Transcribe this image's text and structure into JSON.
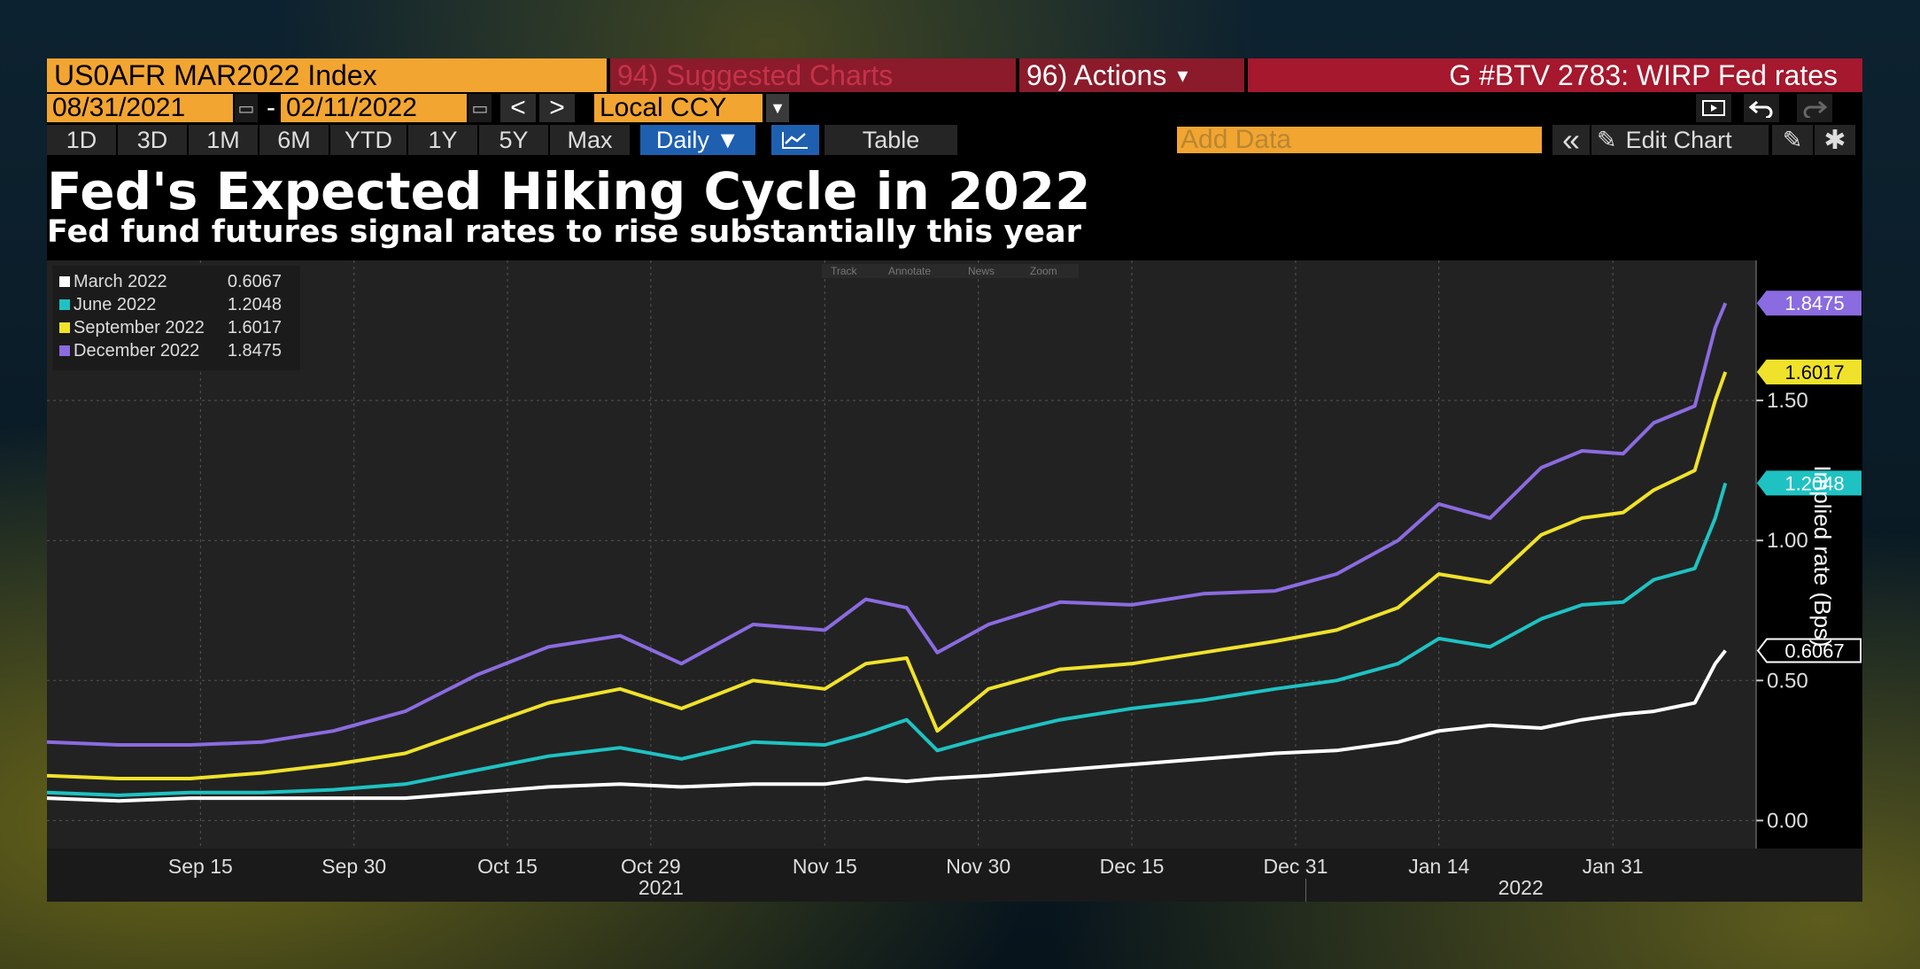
{
  "toolbar": {
    "ticker": "US0AFR MAR2022 Index",
    "suggested": "94) Suggested Charts",
    "actions": "96) Actions",
    "actions_caret": "▾",
    "gbtv": "G #BTV 2783: WIRP Fed rates",
    "start_date": "08/31/2021",
    "end_date": "02/11/2022",
    "date_dash": "-",
    "prev": "<",
    "next": ">",
    "currency": "Local CCY",
    "ranges": [
      "1D",
      "3D",
      "1M",
      "6M",
      "YTD",
      "1Y",
      "5Y",
      "Max"
    ],
    "daily": "Daily ▼",
    "table": "Table",
    "add_data_placeholder": "Add Data",
    "collapse": "«",
    "edit_chart": "Edit Chart"
  },
  "chart_toolbar": {
    "track": "Track",
    "annotate": "Annotate",
    "news": "News",
    "zoom": "Zoom"
  },
  "colors": {
    "march": "#ffffff",
    "june": "#1fc2c2",
    "september": "#f0e22a",
    "december": "#8b6be0",
    "accent": "#f2a531",
    "red": "#a5182d"
  },
  "chart_data": {
    "type": "line",
    "title": "Fed's Expected Hiking Cycle in 2022",
    "subtitle": "Fed fund futures signal rates to rise substantially this year",
    "ylabel": "Implied rate (Bps)",
    "ylim": [
      -0.1,
      2.0
    ],
    "yticks": [
      0.0,
      0.5,
      1.0,
      1.5
    ],
    "ytick_labels": [
      "0.00",
      "0.50",
      "1.00",
      "1.50"
    ],
    "xlim": [
      "2021-08-31",
      "2022-02-14"
    ],
    "xticks": [
      "2021-09-15",
      "2021-09-30",
      "2021-10-15",
      "2021-10-29",
      "2021-11-15",
      "2021-11-30",
      "2021-12-15",
      "2021-12-31",
      "2022-01-14",
      "2022-01-31"
    ],
    "xtick_labels": [
      "Sep 15",
      "Sep 30",
      "Oct 15",
      "Oct 29",
      "Nov 15",
      "Nov 30",
      "Dec 15",
      "Dec 31",
      "Jan 14",
      "Jan 31"
    ],
    "year_labels": [
      {
        "label": "2021",
        "date": "2021-10-30"
      },
      {
        "label": "2022",
        "date": "2022-01-22"
      }
    ],
    "year_divider": "2022-01-01",
    "grid": true,
    "legend_position": "top-left",
    "x": [
      "2021-08-31",
      "2021-09-07",
      "2021-09-14",
      "2021-09-21",
      "2021-09-28",
      "2021-10-05",
      "2021-10-12",
      "2021-10-19",
      "2021-10-26",
      "2021-11-01",
      "2021-11-08",
      "2021-11-15",
      "2021-11-19",
      "2021-11-23",
      "2021-11-26",
      "2021-12-01",
      "2021-12-08",
      "2021-12-15",
      "2021-12-22",
      "2021-12-29",
      "2022-01-04",
      "2022-01-10",
      "2022-01-14",
      "2022-01-19",
      "2022-01-24",
      "2022-01-28",
      "2022-02-01",
      "2022-02-04",
      "2022-02-08",
      "2022-02-10",
      "2022-02-11"
    ],
    "series": [
      {
        "name": "March 2022",
        "color": "#ffffff",
        "last": "0.6067",
        "values": [
          0.08,
          0.07,
          0.08,
          0.08,
          0.08,
          0.08,
          0.1,
          0.12,
          0.13,
          0.12,
          0.13,
          0.13,
          0.15,
          0.14,
          0.15,
          0.16,
          0.18,
          0.2,
          0.22,
          0.24,
          0.25,
          0.28,
          0.32,
          0.34,
          0.33,
          0.36,
          0.38,
          0.39,
          0.42,
          0.56,
          0.6067
        ]
      },
      {
        "name": "June 2022",
        "color": "#1fc2c2",
        "last": "1.2048",
        "values": [
          0.1,
          0.09,
          0.1,
          0.1,
          0.11,
          0.13,
          0.18,
          0.23,
          0.26,
          0.22,
          0.28,
          0.27,
          0.31,
          0.36,
          0.25,
          0.3,
          0.36,
          0.4,
          0.43,
          0.47,
          0.5,
          0.56,
          0.65,
          0.62,
          0.72,
          0.77,
          0.78,
          0.86,
          0.9,
          1.08,
          1.2048
        ]
      },
      {
        "name": "September 2022",
        "color": "#f0e22a",
        "last": "1.6017",
        "values": [
          0.16,
          0.15,
          0.15,
          0.17,
          0.2,
          0.24,
          0.33,
          0.42,
          0.47,
          0.4,
          0.5,
          0.47,
          0.56,
          0.58,
          0.32,
          0.47,
          0.54,
          0.56,
          0.6,
          0.64,
          0.68,
          0.76,
          0.88,
          0.85,
          1.02,
          1.08,
          1.1,
          1.18,
          1.25,
          1.5,
          1.6017
        ]
      },
      {
        "name": "December 2022",
        "color": "#8b6be0",
        "last": "1.8475",
        "values": [
          0.28,
          0.27,
          0.27,
          0.28,
          0.32,
          0.39,
          0.52,
          0.62,
          0.66,
          0.56,
          0.7,
          0.68,
          0.79,
          0.76,
          0.6,
          0.7,
          0.78,
          0.77,
          0.81,
          0.82,
          0.88,
          1.0,
          1.13,
          1.08,
          1.26,
          1.32,
          1.31,
          1.42,
          1.48,
          1.76,
          1.8475
        ]
      }
    ]
  }
}
